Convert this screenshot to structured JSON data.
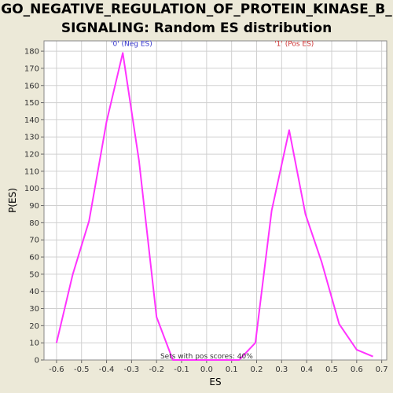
{
  "chart_data": {
    "type": "line",
    "title_lines": [
      "GO_NEGATIVE_REGULATION_OF_PROTEIN_KINASE_B_",
      "SIGNALING: Random ES distribution"
    ],
    "xlabel": "ES",
    "ylabel": "P(ES)",
    "xlim": [
      -0.65,
      0.72
    ],
    "ylim": [
      0,
      186
    ],
    "xticks": [
      -0.6,
      -0.5,
      -0.4,
      -0.3,
      -0.2,
      -0.1,
      0.0,
      0.1,
      0.2,
      0.3,
      0.4,
      0.5,
      0.6,
      0.7
    ],
    "xtick_labels": [
      "-0.6",
      "-0.5",
      "-0.4",
      "-0.3",
      "-0.2",
      "-0.1",
      "0.0",
      "0.1",
      "0.2",
      "0.3",
      "0.4",
      "0.5",
      "0.6",
      "0.7"
    ],
    "yticks": [
      0,
      10,
      20,
      30,
      40,
      50,
      60,
      70,
      80,
      90,
      100,
      110,
      120,
      130,
      140,
      150,
      160,
      170,
      180
    ],
    "grid": true,
    "line_color": "#ff33ff",
    "series": [
      {
        "x": [
          -0.6,
          -0.535,
          -0.47,
          -0.4,
          -0.335,
          -0.27,
          -0.2,
          -0.135,
          -0.07,
          -0.01,
          0.06,
          0.13,
          0.195
        ],
        "y": [
          10,
          50,
          81,
          139,
          179,
          116,
          25,
          0,
          0,
          0,
          0,
          0,
          10
        ]
      },
      {
        "x": [
          0.195,
          0.26,
          0.33,
          0.395,
          0.46,
          0.53,
          0.6,
          0.665
        ],
        "y": [
          10,
          87,
          134,
          85,
          57,
          21,
          6,
          2
        ]
      }
    ],
    "annotations": [
      {
        "text": "'0' (Neg ES)",
        "x": -0.3,
        "y": 183,
        "color": "#3333cc"
      },
      {
        "text": "'1' (Pos ES)",
        "x": 0.35,
        "y": 183,
        "color": "#cc3333"
      },
      {
        "text": "Sets with pos scores: 40%",
        "x": 0.0,
        "y": 1,
        "color": "#333333"
      }
    ]
  }
}
